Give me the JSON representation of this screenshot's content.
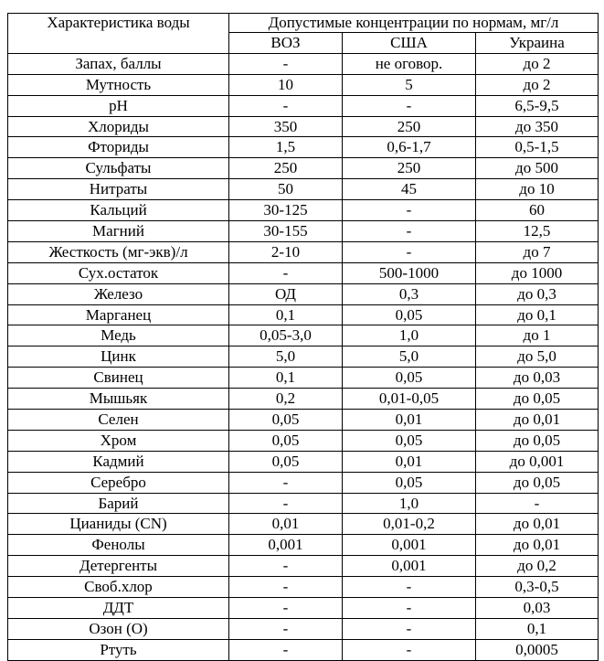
{
  "header": {
    "characteristic": "Характеристика воды",
    "group": "Допустимые концентрации по нормам, мг/л",
    "columns": [
      "ВОЗ",
      "США",
      "Украина"
    ]
  },
  "rows": [
    [
      "Запах, баллы",
      "-",
      "не оговор.",
      "до 2"
    ],
    [
      "Мутность",
      "10",
      "5",
      "до 2"
    ],
    [
      "pH",
      "-",
      "-",
      "6,5-9,5"
    ],
    [
      "Хлориды",
      "350",
      "250",
      "до 350"
    ],
    [
      "Фториды",
      "1,5",
      "0,6-1,7",
      "0,5-1,5"
    ],
    [
      "Сульфаты",
      "250",
      "250",
      "до 500"
    ],
    [
      "Нитраты",
      "50",
      "45",
      "до 10"
    ],
    [
      "Кальций",
      "30-125",
      "-",
      "60"
    ],
    [
      "Магний",
      "30-155",
      "-",
      "12,5"
    ],
    [
      "Жесткость (мг-экв)/л",
      "2-10",
      "-",
      "до 7"
    ],
    [
      "Сух.остаток",
      "-",
      "500-1000",
      "до 1000"
    ],
    [
      "Железо",
      "ОД",
      "0,3",
      "до 0,3"
    ],
    [
      "Марганец",
      "0,1",
      "0,05",
      "до 0,1"
    ],
    [
      "Медь",
      "0,05-3,0",
      "1,0",
      "до 1"
    ],
    [
      "Цинк",
      "5,0",
      "5,0",
      "до 5,0"
    ],
    [
      "Свинец",
      "0,1",
      "0,05",
      "до 0,03"
    ],
    [
      "Мышьяк",
      "0,2",
      "0,01-0,05",
      "до 0,05"
    ],
    [
      "Селен",
      "0,05",
      "0,01",
      "до 0,01"
    ],
    [
      "Хром",
      "0,05",
      "0,05",
      "до 0,05"
    ],
    [
      "Кадмий",
      "0,05",
      "0,01",
      "до 0,001"
    ],
    [
      "Серебро",
      "-",
      "0,05",
      "до 0,05"
    ],
    [
      "Барий",
      "-",
      "1,0",
      "-"
    ],
    [
      "Цианиды (CN)",
      "0,01",
      "0,01-0,2",
      "до 0,01"
    ],
    [
      "Фенолы",
      "0,001",
      "0,001",
      "до 0,01"
    ],
    [
      "Детергенты",
      "-",
      "0,001",
      "до 0,2"
    ],
    [
      "Своб.хлор",
      "-",
      "-",
      "0,3-0,5"
    ],
    [
      "ДДТ",
      "-",
      "-",
      "0,03"
    ],
    [
      "Озон (О)",
      "-",
      "-",
      "0,1"
    ],
    [
      "Ртуть",
      "-",
      "-",
      "0,0005"
    ]
  ]
}
